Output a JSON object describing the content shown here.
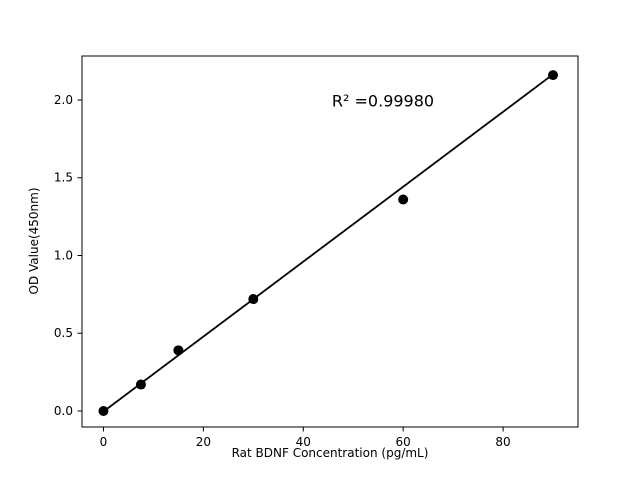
{
  "chart_data": {
    "type": "scatter",
    "title": "",
    "xlabel": "Rat BDNF Concentration (pg/mL)",
    "ylabel": "OD Value(450nm)",
    "annotation": "R² =0.99980",
    "annotation_pos": {
      "x": 56,
      "y": 2.0
    },
    "x": [
      0,
      7.5,
      15,
      30,
      60,
      90
    ],
    "y": [
      0.0,
      0.17,
      0.39,
      0.72,
      1.36,
      2.16
    ],
    "fit_line": {
      "x1": -0.7,
      "y1": -0.02,
      "x2": 90.2,
      "y2": 2.17
    },
    "xlim": [
      -4.3,
      95.0
    ],
    "ylim": [
      -0.103,
      2.283
    ],
    "xticks": [
      {
        "value": 0,
        "label": "0"
      },
      {
        "value": 20,
        "label": "20"
      },
      {
        "value": 40,
        "label": "40"
      },
      {
        "value": 60,
        "label": "60"
      },
      {
        "value": 80,
        "label": "80"
      }
    ],
    "yticks": [
      {
        "value": 0.0,
        "label": "0.0"
      },
      {
        "value": 0.5,
        "label": "0.5"
      },
      {
        "value": 1.0,
        "label": "1.0"
      },
      {
        "value": 1.5,
        "label": "1.5"
      },
      {
        "value": 2.0,
        "label": "2.0"
      }
    ],
    "grid": false,
    "legend": null,
    "marker_color": "#000000",
    "line_color": "#000000",
    "axis_color": "#000000",
    "background": "#ffffff"
  }
}
